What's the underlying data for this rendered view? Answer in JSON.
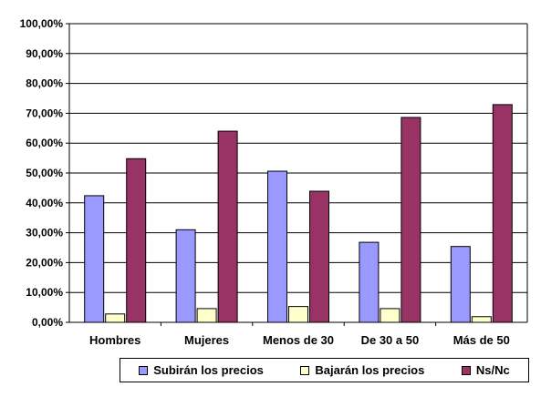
{
  "chart_data": {
    "type": "bar",
    "categories": [
      "Hombres",
      "Mujeres",
      "Menos de 30",
      "De 30 a 50",
      "Más de 50"
    ],
    "series": [
      {
        "name": "Subirán los precios",
        "values": [
          42.4,
          31.0,
          50.6,
          26.8,
          25.4
        ],
        "color": "#9999ff"
      },
      {
        "name": "Bajarán los precios",
        "values": [
          2.8,
          4.6,
          5.3,
          4.6,
          1.9
        ],
        "color": "#ffffcc"
      },
      {
        "name": "Ns/Nc",
        "values": [
          54.8,
          64.0,
          43.9,
          68.6,
          72.9
        ],
        "color": "#993366"
      }
    ],
    "ylim": [
      0,
      100
    ],
    "y_ticks": [
      "0,00%",
      "10,00%",
      "20,00%",
      "30,00%",
      "40,00%",
      "50,00%",
      "60,00%",
      "70,00%",
      "80,00%",
      "90,00%",
      "100,00%"
    ],
    "grid": true,
    "legend_position": "bottom"
  }
}
